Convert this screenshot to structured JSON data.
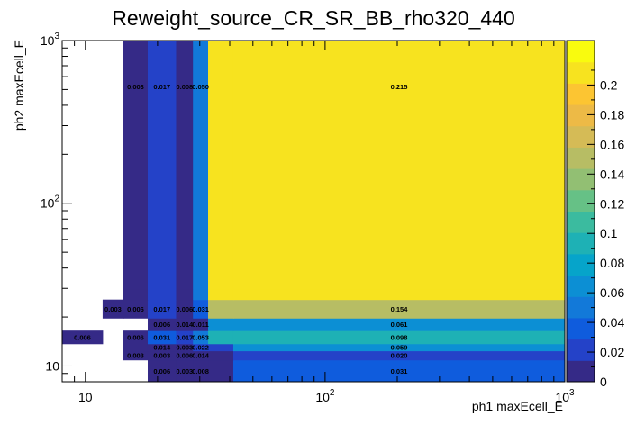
{
  "chart_data": {
    "type": "heatmap",
    "title": "Reweight_source_CR_SR_BB_rho320_440",
    "xlabel": "ph1 maxEcell_E",
    "ylabel": "ph2 maxEcell_E",
    "x_scale": "log",
    "y_scale": "log",
    "xlim": [
      8,
      1000
    ],
    "ylim": [
      8,
      1000
    ],
    "x_ticks": [
      {
        "value": 10,
        "label": "10"
      },
      {
        "value": 100,
        "label": "10^2"
      },
      {
        "value": 1000,
        "label": "10^3"
      }
    ],
    "y_ticks": [
      {
        "value": 10,
        "label": "10"
      },
      {
        "value": 100,
        "label": "10^2"
      },
      {
        "value": 1000,
        "label": "10^3"
      }
    ],
    "colorbar": {
      "range": [
        0,
        0.23
      ],
      "ticks": [
        0,
        0.02,
        0.04,
        0.06,
        0.08,
        0.1,
        0.12,
        0.14,
        0.16,
        0.18,
        0.2
      ]
    },
    "x_bins": [
      8,
      11.8,
      14.4,
      18.2,
      23.9,
      28.1,
      32.5,
      41.4,
      1000
    ],
    "y_bins": [
      8,
      10.9,
      12.4,
      13.7,
      16.5,
      19.7,
      25.6,
      29.7,
      1000
    ],
    "cells": [
      {
        "xbin": 5,
        "ybin": 0,
        "value": 0.008,
        "label": "0.008"
      },
      {
        "xbin": 4,
        "ybin": 0,
        "value": 0.003,
        "label": "0.003"
      },
      {
        "xbin": 3,
        "ybin": 0,
        "value": 0.006,
        "label": "0.006"
      },
      {
        "xbin": 6,
        "ybin": 0,
        "value": 0.014,
        "label": ""
      },
      {
        "xbin": 7,
        "ybin": 0,
        "value": 0.031,
        "label": "0.031"
      },
      {
        "xbin": 2,
        "ybin": 1,
        "value": 0.003,
        "label": "0.003"
      },
      {
        "xbin": 3,
        "ybin": 1,
        "value": 0.003,
        "label": "0.003"
      },
      {
        "xbin": 4,
        "ybin": 1,
        "value": 0.006,
        "label": "0.006"
      },
      {
        "xbin": 5,
        "ybin": 1,
        "value": 0.014,
        "label": "0.014"
      },
      {
        "xbin": 6,
        "ybin": 1,
        "value": 0.014,
        "label": ""
      },
      {
        "xbin": 7,
        "ybin": 1,
        "value": 0.02,
        "label": "0.020"
      },
      {
        "xbin": 2,
        "ybin": 2,
        "value": 0.006,
        "label": ""
      },
      {
        "xbin": 3,
        "ybin": 2,
        "value": 0.014,
        "label": "0.014"
      },
      {
        "xbin": 4,
        "ybin": 2,
        "value": 0.003,
        "label": "0.003"
      },
      {
        "xbin": 5,
        "ybin": 2,
        "value": 0.022,
        "label": "0.022"
      },
      {
        "xbin": 6,
        "ybin": 2,
        "value": 0.022,
        "label": ""
      },
      {
        "xbin": 7,
        "ybin": 2,
        "value": 0.059,
        "label": "0.059"
      },
      {
        "xbin": 0,
        "ybin": 3,
        "value": 0.006,
        "label": "0.006"
      },
      {
        "xbin": 2,
        "ybin": 3,
        "value": 0.006,
        "label": "0.006"
      },
      {
        "xbin": 3,
        "ybin": 3,
        "value": 0.031,
        "label": "0.031"
      },
      {
        "xbin": 4,
        "ybin": 3,
        "value": 0.017,
        "label": "0.017"
      },
      {
        "xbin": 5,
        "ybin": 3,
        "value": 0.053,
        "label": "0.053"
      },
      {
        "xbin": 6,
        "ybin": 3,
        "value": 0.098,
        "label": ""
      },
      {
        "xbin": 7,
        "ybin": 3,
        "value": 0.098,
        "label": "0.098"
      },
      {
        "xbin": 3,
        "ybin": 4,
        "value": 0.006,
        "label": "0.006"
      },
      {
        "xbin": 4,
        "ybin": 4,
        "value": 0.014,
        "label": "0.014"
      },
      {
        "xbin": 5,
        "ybin": 4,
        "value": 0.011,
        "label": "0.011"
      },
      {
        "xbin": 6,
        "ybin": 4,
        "value": 0.061,
        "label": ""
      },
      {
        "xbin": 7,
        "ybin": 4,
        "value": 0.061,
        "label": "0.061"
      },
      {
        "xbin": 1,
        "ybin": 5,
        "value": 0.003,
        "label": "0.003"
      },
      {
        "xbin": 2,
        "ybin": 5,
        "value": 0.006,
        "label": "0.006"
      },
      {
        "xbin": 3,
        "ybin": 5,
        "value": 0.017,
        "label": "0.017"
      },
      {
        "xbin": 4,
        "ybin": 5,
        "value": 0.006,
        "label": "0.006"
      },
      {
        "xbin": 5,
        "ybin": 5,
        "value": 0.031,
        "label": "0.031"
      },
      {
        "xbin": 6,
        "ybin": 5,
        "value": 0.154,
        "label": ""
      },
      {
        "xbin": 7,
        "ybin": 5,
        "value": 0.154,
        "label": "0.154"
      },
      {
        "xbin": 2,
        "ybin": 6,
        "value": 0.003,
        "label": ""
      },
      {
        "xbin": 3,
        "ybin": 6,
        "value": 0.017,
        "label": ""
      },
      {
        "xbin": 4,
        "ybin": 6,
        "value": 0.008,
        "label": ""
      },
      {
        "xbin": 5,
        "ybin": 6,
        "value": 0.05,
        "label": ""
      },
      {
        "xbin": 6,
        "ybin": 6,
        "value": 0.215,
        "label": ""
      },
      {
        "xbin": 7,
        "ybin": 6,
        "value": 0.215,
        "label": ""
      },
      {
        "xbin": 2,
        "ybin": 7,
        "value": 0.003,
        "label": "0.003"
      },
      {
        "xbin": 3,
        "ybin": 7,
        "value": 0.017,
        "label": "0.017"
      },
      {
        "xbin": 4,
        "ybin": 7,
        "value": 0.008,
        "label": "0.008"
      },
      {
        "xbin": 5,
        "ybin": 7,
        "value": 0.05,
        "label": "0.050"
      },
      {
        "xbin": 6,
        "ybin": 7,
        "value": 0.215,
        "label": ""
      },
      {
        "xbin": 7,
        "ybin": 7,
        "value": 0.215,
        "label": "0.215"
      }
    ]
  }
}
